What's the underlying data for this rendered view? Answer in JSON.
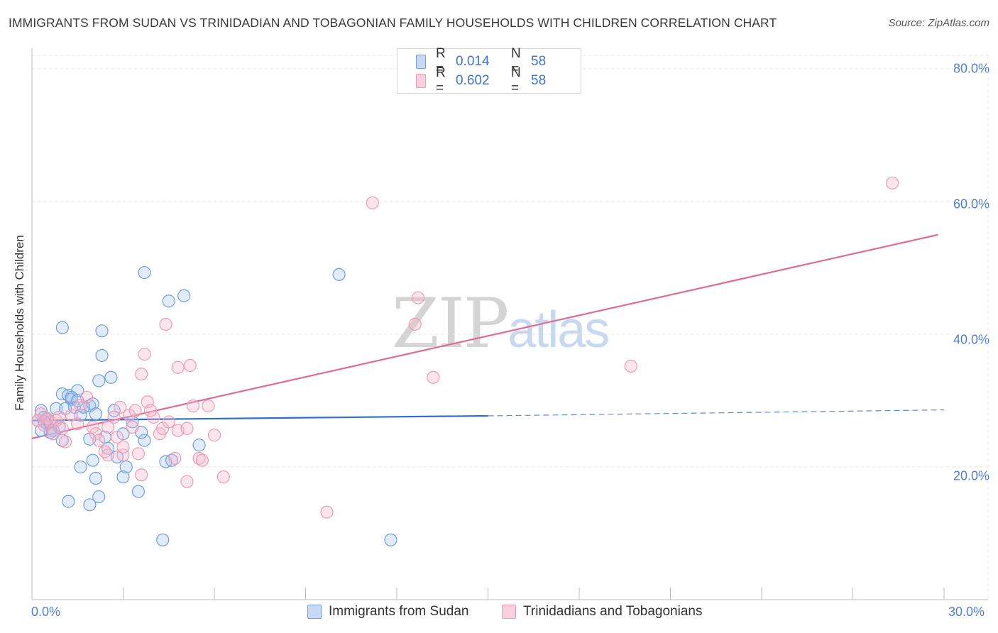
{
  "title": "IMMIGRANTS FROM SUDAN VS TRINIDADIAN AND TOBAGONIAN FAMILY HOUSEHOLDS WITH CHILDREN CORRELATION CHART",
  "source": "Source: ZipAtlas.com",
  "watermark": {
    "zip": "ZIP",
    "atlas": "atlas"
  },
  "colors": {
    "blue": "#6f9fe0",
    "blue_line": "#2b6fcf",
    "pink": "#f09ab5",
    "pink_line": "#e36a95",
    "tick_text": "#4f7fd6"
  },
  "legend": {
    "r_label": "R =",
    "n_label": "N =",
    "series": [
      {
        "r": "0.014",
        "n": "58"
      },
      {
        "r": "0.602",
        "n": "58"
      }
    ]
  },
  "bottom_legend": [
    "Immigrants from Sudan",
    "Trinidadians and Tobagonians"
  ],
  "chart_data": {
    "type": "scatter",
    "title": "IMMIGRANTS FROM SUDAN VS TRINIDADIAN AND TOBAGONIAN FAMILY HOUSEHOLDS WITH CHILDREN CORRELATION CHART",
    "xlabel": "",
    "ylabel": "Family Households with Children",
    "xlim": [
      0,
      30
    ],
    "ylim": [
      0,
      80
    ],
    "x_tick_labels": [
      "0.0%",
      "30.0%"
    ],
    "y_ticks": [
      20,
      40,
      60,
      80
    ],
    "y_tick_labels": [
      "20.0%",
      "40.0%",
      "60.0%",
      "80.0%"
    ],
    "grid": true,
    "series": [
      {
        "name": "Immigrants from Sudan",
        "r": 0.014,
        "n": 58,
        "trend": {
          "x": [
            0,
            15
          ],
          "y": [
            27.0,
            27.7
          ],
          "dashed_to_x": 30,
          "dashed_to_y": 28.6
        },
        "points": [
          [
            0.2,
            27.0
          ],
          [
            0.3,
            28.5
          ],
          [
            0.4,
            27.5
          ],
          [
            0.5,
            26.5
          ],
          [
            0.6,
            25.2
          ],
          [
            0.7,
            25.5
          ],
          [
            0.8,
            28.8
          ],
          [
            0.5,
            27.2
          ],
          [
            0.4,
            26.8
          ],
          [
            0.9,
            26.0
          ],
          [
            0.7,
            25.0
          ],
          [
            1.0,
            31.0
          ],
          [
            1.1,
            28.8
          ],
          [
            1.2,
            30.8
          ],
          [
            1.3,
            30.2
          ],
          [
            1.4,
            29.0
          ],
          [
            1.5,
            31.5
          ],
          [
            1.6,
            27.8
          ],
          [
            1.0,
            24.0
          ],
          [
            1.9,
            29.2
          ],
          [
            2.0,
            29.5
          ],
          [
            2.1,
            28.0
          ],
          [
            2.2,
            33.0
          ],
          [
            1.9,
            24.2
          ],
          [
            2.4,
            24.5
          ],
          [
            2.5,
            22.8
          ],
          [
            2.6,
            33.5
          ],
          [
            2.3,
            36.8
          ],
          [
            2.3,
            40.5
          ],
          [
            1.0,
            41.0
          ],
          [
            1.3,
            30.5
          ],
          [
            1.7,
            29.0
          ],
          [
            2.7,
            28.5
          ],
          [
            2.8,
            21.5
          ],
          [
            3.0,
            25.0
          ],
          [
            3.3,
            26.8
          ],
          [
            3.0,
            18.5
          ],
          [
            3.1,
            20.0
          ],
          [
            2.1,
            18.3
          ],
          [
            1.2,
            14.8
          ],
          [
            1.6,
            20.0
          ],
          [
            1.9,
            14.3
          ],
          [
            2.2,
            15.5
          ],
          [
            2.0,
            21.0
          ],
          [
            3.5,
            16.3
          ],
          [
            3.7,
            24.0
          ],
          [
            3.6,
            25.2
          ],
          [
            4.4,
            20.8
          ],
          [
            4.6,
            21.0
          ],
          [
            4.5,
            45.0
          ],
          [
            5.0,
            45.8
          ],
          [
            3.7,
            49.3
          ],
          [
            5.5,
            23.3
          ],
          [
            10.1,
            49.0
          ],
          [
            4.3,
            9.0
          ],
          [
            11.8,
            9.0
          ],
          [
            0.3,
            25.5
          ],
          [
            1.5,
            30.0
          ]
        ]
      },
      {
        "name": "Trinidadians and Tobagonians",
        "r": 0.602,
        "n": 58,
        "trend": {
          "x": [
            0,
            29.8
          ],
          "y": [
            24.3,
            55.0
          ]
        },
        "points": [
          [
            0.2,
            27.0
          ],
          [
            0.3,
            28.0
          ],
          [
            0.4,
            26.3
          ],
          [
            0.5,
            27.3
          ],
          [
            0.6,
            26.8
          ],
          [
            0.7,
            25.0
          ],
          [
            0.8,
            27.0
          ],
          [
            0.9,
            27.5
          ],
          [
            1.0,
            25.8
          ],
          [
            1.1,
            23.8
          ],
          [
            1.3,
            27.8
          ],
          [
            1.5,
            26.5
          ],
          [
            1.6,
            29.3
          ],
          [
            1.8,
            30.5
          ],
          [
            2.0,
            26.0
          ],
          [
            2.1,
            25.0
          ],
          [
            2.2,
            24.0
          ],
          [
            2.4,
            22.3
          ],
          [
            2.5,
            26.0
          ],
          [
            2.7,
            27.5
          ],
          [
            2.8,
            24.5
          ],
          [
            2.9,
            29.0
          ],
          [
            3.0,
            21.8
          ],
          [
            3.2,
            27.8
          ],
          [
            3.3,
            26.0
          ],
          [
            3.4,
            28.5
          ],
          [
            3.5,
            22.0
          ],
          [
            3.6,
            34.0
          ],
          [
            3.8,
            29.8
          ],
          [
            3.9,
            28.5
          ],
          [
            4.0,
            27.5
          ],
          [
            4.2,
            25.0
          ],
          [
            4.3,
            25.8
          ],
          [
            4.5,
            26.8
          ],
          [
            4.7,
            21.3
          ],
          [
            4.8,
            25.5
          ],
          [
            5.1,
            25.8
          ],
          [
            5.3,
            29.2
          ],
          [
            5.5,
            21.3
          ],
          [
            5.6,
            21.0
          ],
          [
            5.8,
            29.2
          ],
          [
            6.0,
            24.8
          ],
          [
            6.3,
            18.5
          ],
          [
            3.7,
            37.0
          ],
          [
            4.8,
            35.0
          ],
          [
            4.4,
            41.5
          ],
          [
            5.2,
            35.3
          ],
          [
            5.1,
            17.8
          ],
          [
            3.6,
            18.8
          ],
          [
            2.5,
            21.8
          ],
          [
            3.0,
            23.0
          ],
          [
            9.7,
            13.2
          ],
          [
            11.2,
            59.8
          ],
          [
            12.7,
            45.5
          ],
          [
            13.2,
            33.5
          ],
          [
            19.7,
            35.2
          ],
          [
            28.3,
            62.8
          ],
          [
            12.6,
            41.5
          ]
        ]
      }
    ]
  }
}
